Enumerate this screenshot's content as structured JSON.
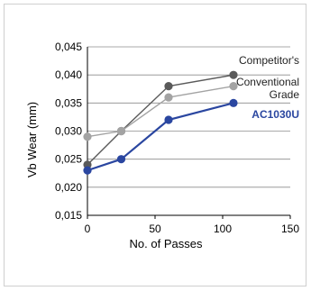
{
  "chart_data": {
    "type": "line",
    "title": "",
    "xlabel": "No. of Passes",
    "ylabel": "Vb Wear (mm)",
    "xlim": [
      0,
      150
    ],
    "ylim": [
      0.015,
      0.045
    ],
    "xticks": [
      0,
      50,
      100,
      150
    ],
    "xtick_labels": [
      "0",
      "50",
      "100",
      "150"
    ],
    "yticks": [
      0.015,
      0.02,
      0.025,
      0.03,
      0.035,
      0.04,
      0.045
    ],
    "ytick_labels": [
      "0,015",
      "0,020",
      "0,025",
      "0,030",
      "0,035",
      "0,040",
      "0,045"
    ],
    "grid": "horizontal",
    "series": [
      {
        "name": "Competitor's",
        "label_lines": [
          "Competitor's"
        ],
        "color": "#5a5a5a",
        "x": [
          0,
          25,
          60,
          108
        ],
        "y": [
          0.024,
          0.03,
          0.038,
          0.04
        ]
      },
      {
        "name": "Conventional Grade",
        "label_lines": [
          "Conventional",
          "Grade"
        ],
        "color": "#a3a3a3",
        "x": [
          0,
          25,
          60,
          108
        ],
        "y": [
          0.029,
          0.03,
          0.036,
          0.038
        ]
      },
      {
        "name": "AC1030U",
        "label_lines": [
          "AC1030U"
        ],
        "color": "#2a46a0",
        "x": [
          0,
          25,
          60,
          108
        ],
        "y": [
          0.023,
          0.025,
          0.032,
          0.035
        ]
      }
    ]
  }
}
